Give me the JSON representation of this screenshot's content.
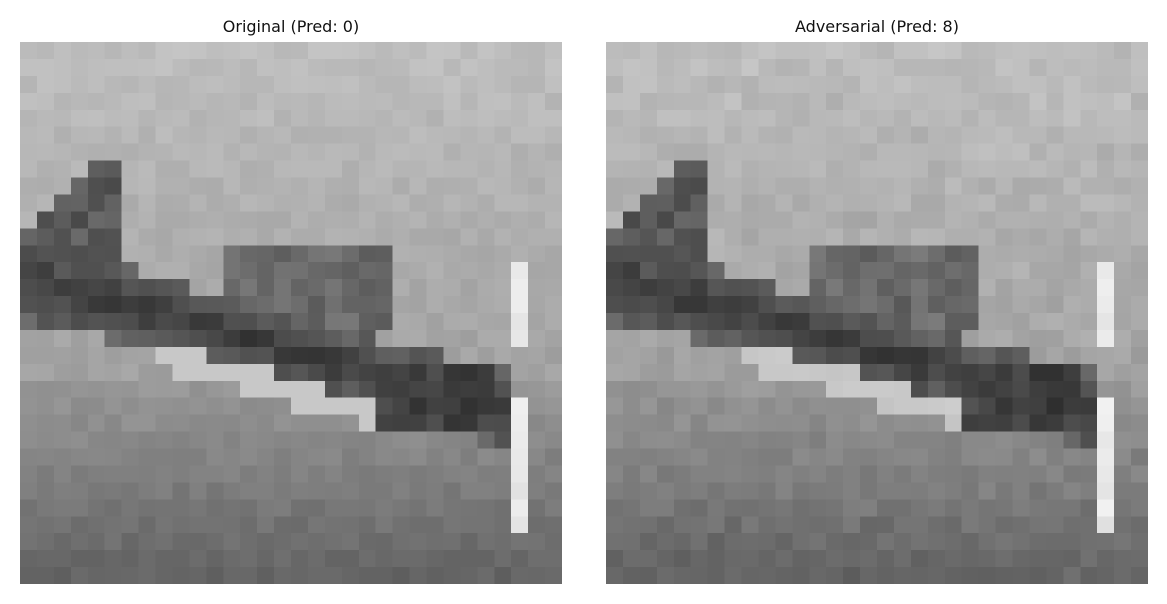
{
  "panels": [
    {
      "title": "Original (Pred: 0)",
      "image_description": "32x32 grayscale pixelated image; dark diagonal band (aircraft silhouette) across a light upper sky and mid-gray lower ground"
    },
    {
      "title": "Adversarial (Pred: 8)",
      "image_description": "Same 32x32 grayscale image with subtle perturbation"
    }
  ],
  "colors": {
    "background": "#ffffff",
    "title_text": "#111111"
  }
}
